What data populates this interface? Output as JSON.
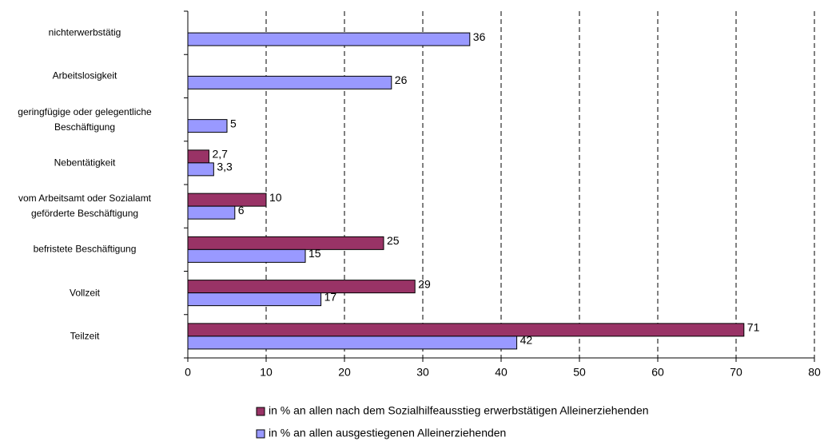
{
  "chart_data": {
    "type": "hbar",
    "categories": [
      "nichterwerbstätig",
      "Arbeitslosigkeit",
      "geringfügige oder gelegentliche\nBeschäftigung",
      "Nebentätigkeit",
      "vom Arbeitsamt oder Sozialamt\ngeförderte Beschäftigung",
      "befristete Beschäftigung",
      "Vollzeit",
      "Teilzeit"
    ],
    "series": [
      {
        "name": "in % an allen nach dem Sozialhilfeausstieg erwerbstätigen Alleinerziehenden",
        "color": "#993366",
        "values": [
          null,
          null,
          null,
          2.7,
          10,
          25,
          29,
          71
        ],
        "value_labels": [
          null,
          null,
          null,
          "2,7",
          "10",
          "25",
          "29",
          "71"
        ]
      },
      {
        "name": "in % an allen ausgestiegenen Alleinerziehenden",
        "color": "#9999ff",
        "values": [
          36,
          26,
          5,
          3.3,
          6,
          15,
          17,
          42
        ],
        "value_labels": [
          "36",
          "26",
          "5",
          "3,3",
          "6",
          "15",
          "17",
          "42"
        ]
      }
    ],
    "xlim": [
      0,
      80
    ],
    "xticks": [
      0,
      10,
      20,
      30,
      40,
      50,
      60,
      70,
      80
    ],
    "grid": true,
    "legend": "bottom"
  }
}
